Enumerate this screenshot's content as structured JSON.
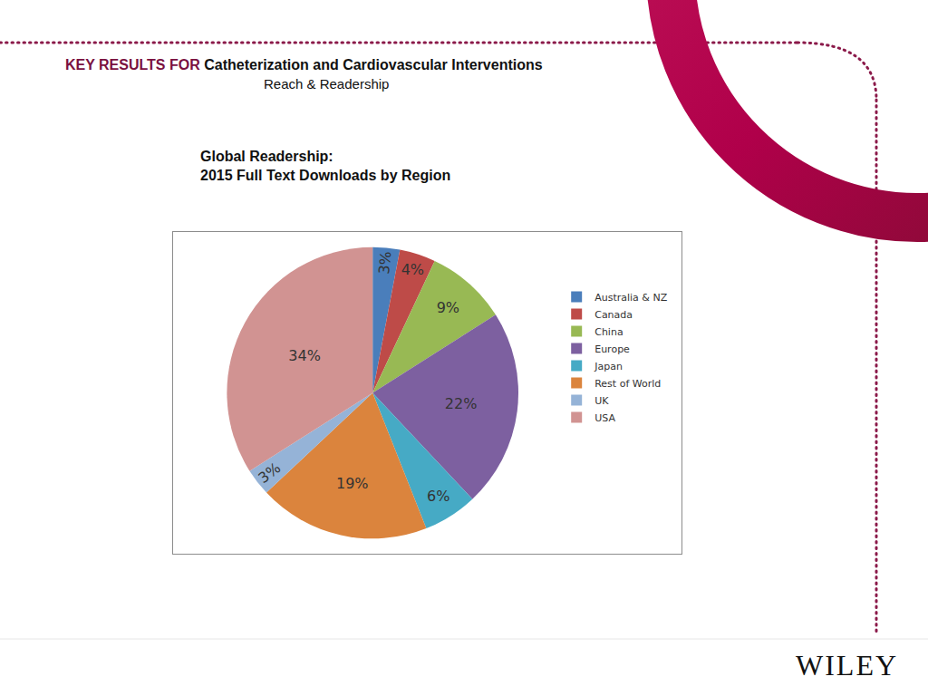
{
  "header": {
    "title_prefix": "KEY RESULTS FOR",
    "title": "Catheterization and Cardiovascular Interventions",
    "subtitle": "Reach & Readership"
  },
  "chart_heading": [
    "Global Readership:",
    "2015 Full Text Downloads by Region"
  ],
  "chart_data": {
    "type": "pie",
    "categories": [
      "Australia & NZ",
      "Canada",
      "China",
      "Europe",
      "Japan",
      "Rest of World",
      "UK",
      "USA"
    ],
    "values": [
      3,
      4,
      9,
      22,
      6,
      19,
      3,
      34
    ],
    "value_labels": [
      "3%",
      "4%",
      "9%",
      "22%",
      "6%",
      "19%",
      "3%",
      "34%"
    ],
    "colors": [
      "#4a7ebb",
      "#be4b48",
      "#98b954",
      "#7d60a0",
      "#46aac5",
      "#db843d",
      "#95b3d7",
      "#d19392"
    ],
    "data_labels": true,
    "legend": "right"
  },
  "footer": {
    "logo": "WILEY"
  }
}
